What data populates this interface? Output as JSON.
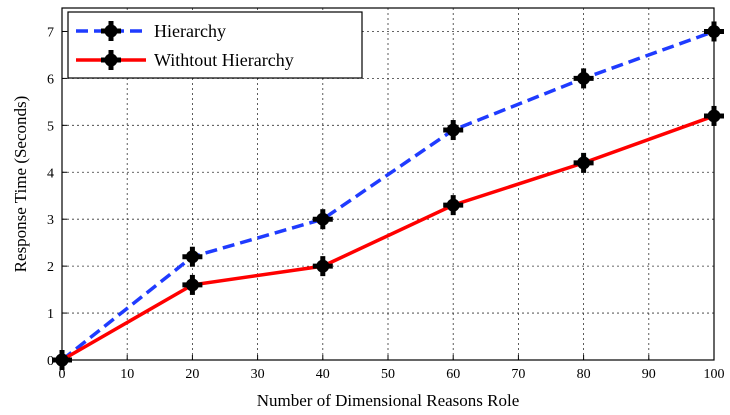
{
  "chart_data": {
    "type": "line",
    "title": "",
    "xlabel": "Number of Dimensional Reasons Role",
    "ylabel": "Response Time (Seconds)",
    "xlim": [
      0,
      100
    ],
    "ylim": [
      0,
      7.5
    ],
    "xticks": [
      0,
      10,
      20,
      30,
      40,
      50,
      60,
      70,
      80,
      90,
      100
    ],
    "yticks": [
      0,
      1,
      2,
      3,
      4,
      5,
      6,
      7
    ],
    "grid": true,
    "legend_position": "top-left",
    "x": [
      0,
      20,
      40,
      60,
      80,
      100
    ],
    "series": [
      {
        "name": "Hierarchy",
        "values": [
          0,
          2.2,
          3.0,
          4.9,
          6.0,
          7.0
        ],
        "color": "#1f3bff",
        "line_style": "dashed",
        "marker": "black-cross"
      },
      {
        "name": "Withtout Hierarchy",
        "values": [
          0,
          1.6,
          2.0,
          3.3,
          4.2,
          5.2
        ],
        "color": "#ff0000",
        "line_style": "solid",
        "marker": "black-cross"
      }
    ]
  }
}
